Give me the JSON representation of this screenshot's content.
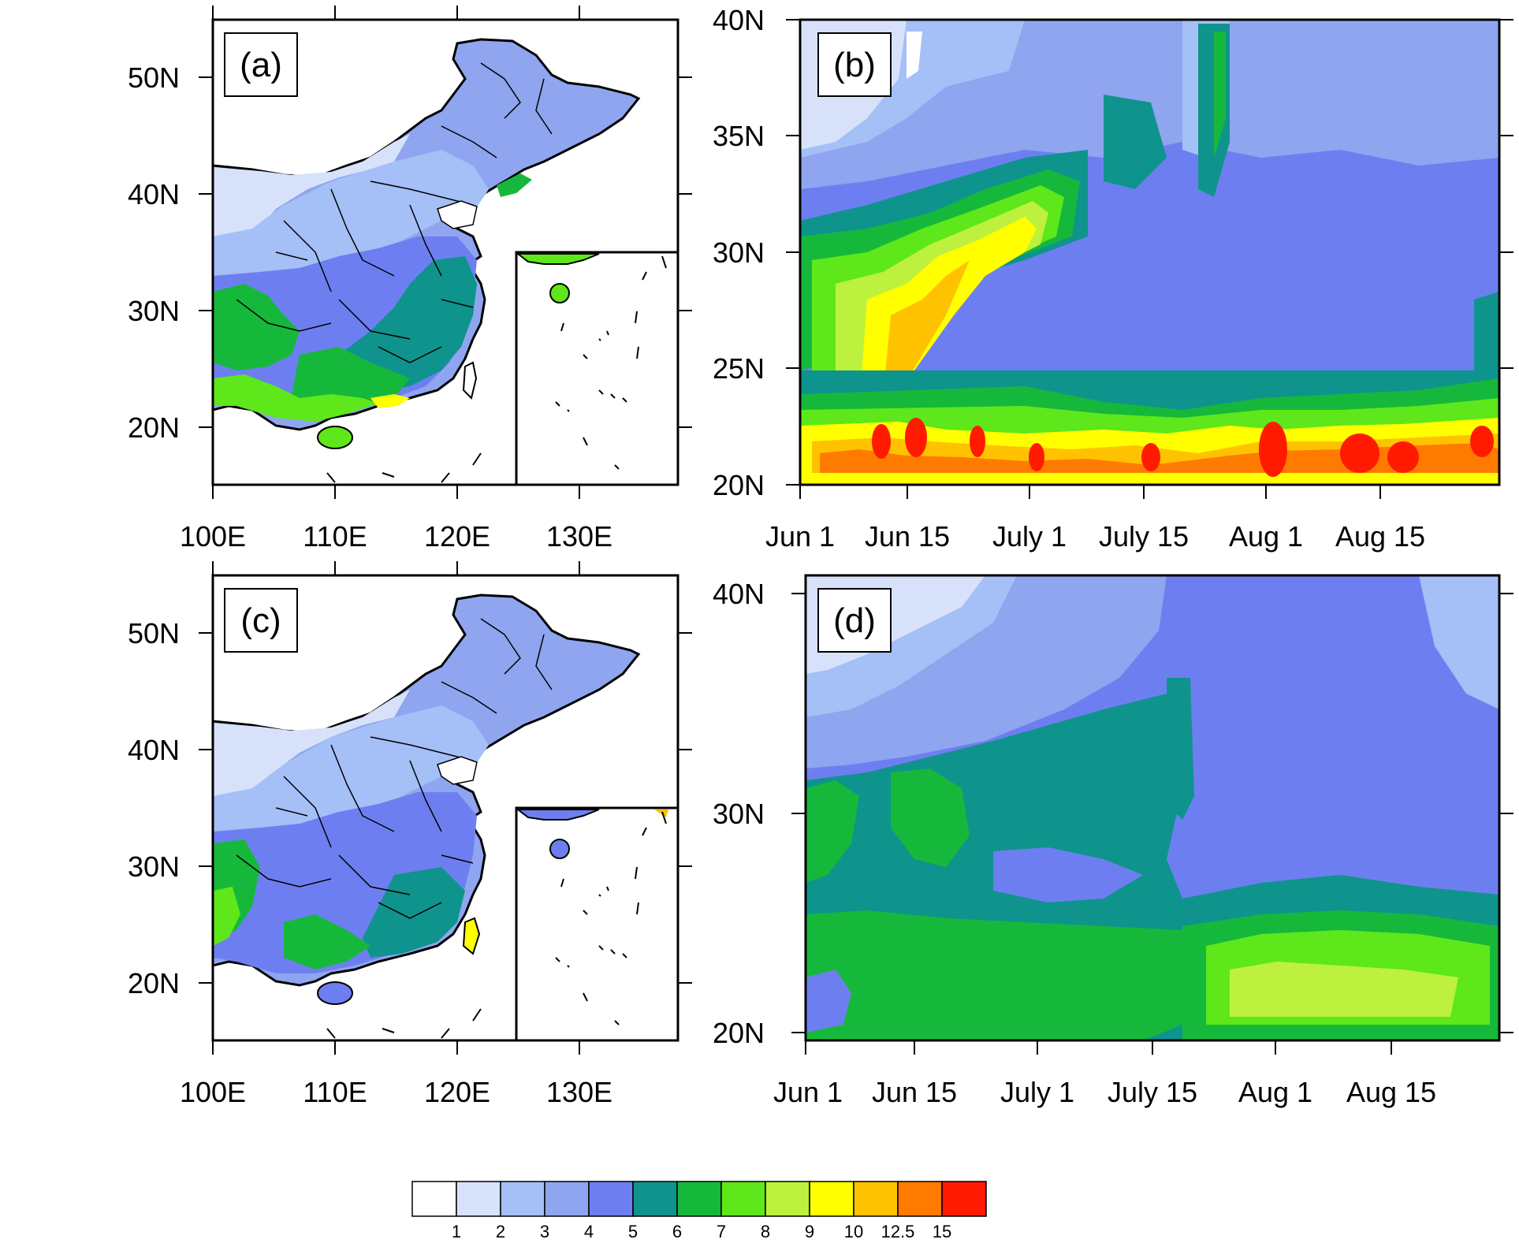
{
  "colorbar": {
    "colors": [
      "#ffffff",
      "#d7e2fa",
      "#a5bff7",
      "#8fa5ef",
      "#6d7ff0",
      "#0e948c",
      "#16b83b",
      "#5ee71a",
      "#bdf13d",
      "#ffff00",
      "#ffc200",
      "#ff7b00",
      "#ff1a00"
    ],
    "labels": [
      "1",
      "2",
      "3",
      "4",
      "5",
      "6",
      "7",
      "8",
      "9",
      "10",
      "12.5",
      "15"
    ]
  },
  "panels": {
    "a": {
      "label": "(a)",
      "lat_ticks": [
        "50N",
        "40N",
        "30N",
        "20N"
      ],
      "lon_ticks": [
        "100E",
        "110E",
        "120E",
        "130E"
      ]
    },
    "b": {
      "label": "(b)",
      "lat_ticks": [
        "40N",
        "35N",
        "30N",
        "25N",
        "20N"
      ],
      "time_ticks": [
        "Jun 1",
        "Jun 15",
        "July 1",
        "July 15",
        "Aug 1",
        "Aug 15"
      ]
    },
    "c": {
      "label": "(c)",
      "lat_ticks": [
        "50N",
        "40N",
        "30N",
        "20N"
      ],
      "lon_ticks": [
        "100E",
        "110E",
        "120E",
        "130E"
      ]
    },
    "d": {
      "label": "(d)",
      "lat_ticks": [
        "40N",
        "30N",
        "20N"
      ],
      "time_ticks": [
        "Jun 1",
        "Jun 15",
        "July 1",
        "July 15",
        "Aug 1",
        "Aug 15"
      ]
    }
  }
}
